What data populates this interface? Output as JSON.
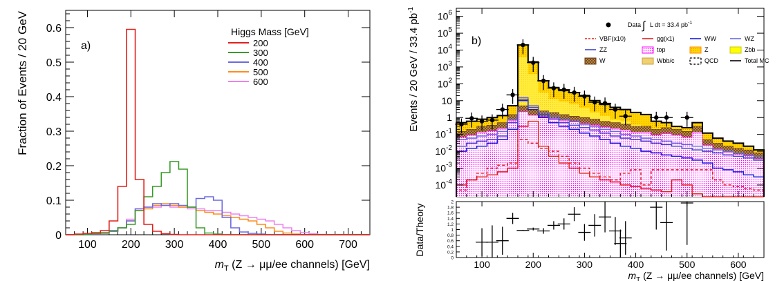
{
  "chart_data": [
    {
      "type": "line",
      "panel_label": "a)",
      "xlabel_var": "m",
      "xlabel_sub": "T",
      "xlabel_rest": " (Z → μμ/ee channels) [GeV]",
      "ylabel": "Fraction of Events / 20 GeV",
      "xlim": [
        50,
        750
      ],
      "ylim": [
        0,
        0.65
      ],
      "xticks": [
        "100",
        "200",
        "300",
        "400",
        "500",
        "600",
        "700"
      ],
      "xtick_values": [
        100,
        200,
        300,
        400,
        500,
        600,
        700
      ],
      "yticks": [
        "0",
        "0.1",
        "0.2",
        "0.3",
        "0.4",
        "0.5",
        "0.6"
      ],
      "ytick_values": [
        0,
        0.1,
        0.2,
        0.3,
        0.4,
        0.5,
        0.6
      ],
      "legend_title": "Higgs Mass [GeV]",
      "legend_position": "top-right",
      "bin_edges": [
        50,
        70,
        90,
        110,
        130,
        150,
        170,
        190,
        210,
        230,
        250,
        270,
        290,
        310,
        330,
        350,
        370,
        390,
        410,
        430,
        450,
        470,
        490,
        510,
        530,
        550,
        570,
        590,
        610,
        630,
        650,
        670,
        690,
        710,
        730,
        750
      ],
      "series": [
        {
          "name": "200",
          "color": "#e0201c",
          "values": [
            0,
            0.002,
            0.004,
            0.006,
            0.012,
            0.04,
            0.14,
            0.595,
            0.16,
            0.03,
            0.01,
            0.003,
            0.001,
            0,
            0,
            0,
            0,
            0,
            0,
            0,
            0,
            0,
            0,
            0,
            0,
            0,
            0,
            0,
            0,
            0,
            0,
            0,
            0,
            0,
            0
          ]
        },
        {
          "name": "300",
          "color": "#3a9a2a",
          "values": [
            0,
            0,
            0.001,
            0.003,
            0.006,
            0.012,
            0.02,
            0.03,
            0.07,
            0.11,
            0.14,
            0.18,
            0.212,
            0.19,
            0.08,
            0.02,
            0.005,
            0.002,
            0,
            0,
            0,
            0,
            0,
            0,
            0,
            0,
            0,
            0,
            0,
            0,
            0,
            0,
            0,
            0,
            0
          ]
        },
        {
          "name": "400",
          "color": "#6a6adf",
          "values": [
            0,
            0,
            0,
            0.002,
            0.005,
            0.01,
            0.02,
            0.04,
            0.075,
            0.08,
            0.09,
            0.085,
            0.09,
            0.085,
            0.08,
            0.105,
            0.11,
            0.1,
            0.05,
            0.02,
            0.008,
            0.004,
            0.002,
            0,
            0,
            0,
            0,
            0,
            0,
            0,
            0,
            0,
            0,
            0,
            0
          ]
        },
        {
          "name": "500",
          "color": "#ff8c1a",
          "values": [
            0,
            0,
            0,
            0.002,
            0.004,
            0.01,
            0.02,
            0.04,
            0.07,
            0.075,
            0.085,
            0.09,
            0.085,
            0.08,
            0.08,
            0.07,
            0.065,
            0.06,
            0.055,
            0.05,
            0.045,
            0.04,
            0.03,
            0.02,
            0.01,
            0.005,
            0.002,
            0,
            0,
            0,
            0,
            0,
            0,
            0,
            0
          ]
        },
        {
          "name": "600",
          "color": "#ee82ee",
          "values": [
            0,
            0,
            0,
            0.002,
            0.004,
            0.01,
            0.02,
            0.045,
            0.075,
            0.08,
            0.08,
            0.085,
            0.08,
            0.08,
            0.075,
            0.075,
            0.07,
            0.07,
            0.065,
            0.06,
            0.055,
            0.05,
            0.045,
            0.04,
            0.03,
            0.02,
            0.012,
            0.006,
            0.003,
            0.001,
            0,
            0,
            0,
            0,
            0
          ]
        }
      ]
    },
    {
      "type": "area",
      "panel_label": "b)",
      "xlabel_var": "m",
      "xlabel_sub": "T",
      "xlabel_rest": " (Z → μμ/ee channels) [GeV]",
      "ylabel": "Events / 20 GeV / 33.4 pb",
      "ylabel_sup": "-1",
      "yscale": "log",
      "xlim": [
        50,
        650
      ],
      "ylim": [
        2e-05,
        3000000
      ],
      "xticks": [
        "100",
        "200",
        "300",
        "400",
        "500",
        "600"
      ],
      "xtick_values": [
        100,
        200,
        300,
        400,
        500,
        600
      ],
      "ytick_values": [
        0.0001,
        0.001,
        0.01,
        0.1,
        1,
        10,
        100,
        1000,
        10000,
        100000,
        1000000
      ],
      "ytick_labels": [
        {
          "base": "10",
          "exp": "-4"
        },
        {
          "base": "10",
          "exp": "-3"
        },
        {
          "base": "10",
          "exp": "-2"
        },
        {
          "base": "10",
          "exp": "-1"
        },
        {
          "base": "1",
          "exp": ""
        },
        {
          "base": "10",
          "exp": ""
        },
        {
          "base": "10",
          "exp": "2"
        },
        {
          "base": "10",
          "exp": "3"
        },
        {
          "base": "10",
          "exp": "4"
        },
        {
          "base": "10",
          "exp": "5"
        },
        {
          "base": "10",
          "exp": "6"
        }
      ],
      "data_label_prefix": "Data",
      "data_label_int": "L dt = 33.4 pb",
      "data_label_sup": "-1",
      "legend_position": "top-right",
      "bin_edges": [
        50,
        70,
        90,
        110,
        130,
        150,
        170,
        190,
        210,
        230,
        250,
        270,
        290,
        310,
        330,
        350,
        370,
        390,
        410,
        430,
        450,
        470,
        490,
        510,
        530,
        550,
        570,
        590,
        610,
        630,
        650
      ],
      "total_mc": [
        0.5,
        0.6,
        0.8,
        1.0,
        1.3,
        5,
        20000,
        2000,
        150,
        60,
        40,
        30,
        20,
        10,
        6,
        4,
        3,
        2,
        1.5,
        0.6,
        0.5,
        0.3,
        0.25,
        0.5,
        0.12,
        0.06,
        0.04,
        0.03,
        0.02,
        0.012
      ],
      "mc_band": [
        {
          "name": "Z",
          "color": "#ffd700",
          "values": [
            0.2,
            0.3,
            0.4,
            0.5,
            0.7,
            3,
            15000,
            1500,
            120,
            50,
            35,
            25,
            15,
            8,
            5,
            3,
            2.5,
            1.5,
            1.2,
            0.5,
            0.4,
            0.25,
            0.2,
            0.45,
            0.1,
            0.05,
            0.03,
            0.025,
            0.015,
            0.01
          ]
        },
        {
          "name": "W",
          "color": "#8b5a2b",
          "values": [
            0.15,
            0.2,
            0.3,
            0.35,
            0.5,
            1.5,
            5,
            3,
            2.5,
            2,
            1.5,
            1.2,
            1,
            0.8,
            0.6,
            0.5,
            0.4,
            0.3,
            0.3,
            0.2,
            0.25,
            0.2,
            0.15,
            0.3,
            0.05,
            0.03,
            0.02,
            0.015,
            0.012,
            0.008
          ]
        }
      ],
      "series": [
        {
          "name": "VBF(x10)",
          "color": "#e0201c",
          "dashed": true,
          "values": [
            5e-05,
            0.0002,
            0.0005,
            0.001,
            0.0015,
            0.002,
            0.05,
            0.03,
            0.015,
            0.01,
            0.005,
            0.002,
            0.001,
            0.0005,
            0.0003,
            0.0002,
            0.0005,
            0.0008,
            0.0001,
            0.0008,
            0.0008,
            0.0008,
            0.0008,
            0.0008,
            0.0008,
            0.0002,
            0.0001,
            8e-05,
            6e-05,
            5e-05
          ]
        },
        {
          "name": "gg(x1)",
          "color": "#e0201c",
          "dashed": false,
          "values": [
            0.0001,
            0.0002,
            0.0003,
            0.0004,
            0.0006,
            0.001,
            0.3,
            0.6,
            0.02,
            0.005,
            0.002,
            0.001,
            0.0005,
            0.0003,
            0.0002,
            0.00015,
            0.0001,
            8e-05,
            6e-05,
            5e-05,
            4e-05,
            0.0002,
            0.0001,
            3e-05,
            2e-05,
            2e-05,
            2e-05,
            2e-05,
            2e-05,
            2e-05
          ]
        },
        {
          "name": "WW",
          "color": "#1a1adf",
          "dashed": false,
          "values": [
            0.01,
            0.015,
            0.02,
            0.03,
            0.05,
            0.2,
            10,
            3,
            1,
            0.5,
            0.3,
            0.2,
            0.12,
            0.08,
            0.05,
            0.03,
            0.02,
            0.015,
            0.01,
            0.008,
            0.006,
            0.005,
            0.004,
            0.003,
            0.002,
            0.001,
            0.0008,
            0.0006,
            0.0004,
            0.0003
          ]
        },
        {
          "name": "WZ",
          "color": "#6a6adf",
          "dashed": false,
          "values": [
            0.05,
            0.06,
            0.08,
            0.1,
            0.15,
            0.8,
            15,
            5,
            2,
            1.2,
            0.8,
            0.6,
            0.4,
            0.3,
            0.2,
            0.15,
            0.1,
            0.08,
            0.06,
            0.05,
            0.04,
            0.03,
            0.025,
            0.02,
            0.015,
            0.012,
            0.01,
            0.008,
            0.006,
            0.005
          ]
        },
        {
          "name": "ZZ",
          "color": "#4444cc",
          "dashed": false,
          "values": [
            0.02,
            0.03,
            0.04,
            0.05,
            0.08,
            0.5,
            12,
            4,
            1.5,
            0.8,
            0.5,
            0.35,
            0.25,
            0.18,
            0.12,
            0.08,
            0.06,
            0.05,
            0.04,
            0.03,
            0.025,
            0.02,
            0.015,
            0.012,
            0.01,
            0.008,
            0.006,
            0.005,
            0.004,
            0.003
          ]
        },
        {
          "name": "Total MC",
          "color": "#000000",
          "dashed": false,
          "values": [
            0.5,
            0.6,
            0.8,
            1.0,
            1.3,
            5,
            20000,
            2000,
            150,
            60,
            40,
            30,
            20,
            10,
            6,
            4,
            3,
            2,
            1.5,
            0.6,
            0.5,
            0.3,
            0.25,
            0.5,
            0.12,
            0.06,
            0.04,
            0.03,
            0.02,
            0.012
          ]
        }
      ],
      "data_points": [
        {
          "x": 60,
          "y": 0.4
        },
        {
          "x": 80,
          "y": 0.9
        },
        {
          "x": 100,
          "y": 0.6
        },
        {
          "x": 120,
          "y": 0.7
        },
        {
          "x": 140,
          "y": 3
        },
        {
          "x": 160,
          "y": 22
        },
        {
          "x": 180,
          "y": 20000
        },
        {
          "x": 200,
          "y": 1800
        },
        {
          "x": 220,
          "y": 150
        },
        {
          "x": 240,
          "y": 55
        },
        {
          "x": 260,
          "y": 45
        },
        {
          "x": 280,
          "y": 30
        },
        {
          "x": 300,
          "y": 18
        },
        {
          "x": 320,
          "y": 8
        },
        {
          "x": 340,
          "y": 7
        },
        {
          "x": 360,
          "y": 3
        },
        {
          "x": 380,
          "y": 1.2
        },
        {
          "x": 440,
          "y": 1
        },
        {
          "x": 460,
          "y": 1
        },
        {
          "x": 500,
          "y": 1
        }
      ],
      "legend": {
        "data": "Data",
        "row1": [
          "VBF(x10)",
          "gg(x1)",
          "WW",
          "WZ"
        ],
        "row2": [
          "ZZ",
          "top",
          "Z",
          "Zbb"
        ],
        "row3": [
          "W",
          "Wbb/c",
          "QCD",
          "Total MC"
        ]
      },
      "legend_colors": {
        "VBF(x10)": "#e0201c",
        "gg(x1)": "#e0201c",
        "WW": "#1a1adf",
        "WZ": "#6a6adf",
        "ZZ": "#4444cc",
        "top": "#ff00ff",
        "Z": "#ffd700",
        "Zbb": "#ffff00",
        "W": "#8b5a2b",
        "Wbb/c": "#c8a040",
        "QCD": "#000000",
        "Total MC": "#000000"
      },
      "ratio": {
        "ylabel": "Data/Theory",
        "ylim": [
          0,
          2
        ],
        "yticks": [
          "0",
          "0.2",
          "0.4",
          "0.6",
          "0.8",
          "1",
          "1.2",
          "1.4",
          "1.6",
          "1.8",
          "2"
        ],
        "ytick_values": [
          0,
          0.2,
          0.4,
          0.6,
          0.8,
          1,
          1.2,
          1.4,
          1.6,
          1.8,
          2
        ],
        "points": [
          {
            "x": 100,
            "y": 0.55,
            "err": 0.5
          },
          {
            "x": 120,
            "y": 0.55,
            "err": 0.6
          },
          {
            "x": 140,
            "y": 0.6,
            "err": 0.5
          },
          {
            "x": 160,
            "y": 1.4,
            "err": 0.2
          },
          {
            "x": 180,
            "y": 0.97,
            "err": 0.02
          },
          {
            "x": 200,
            "y": 1.02,
            "err": 0.05
          },
          {
            "x": 220,
            "y": 0.95,
            "err": 0.1
          },
          {
            "x": 240,
            "y": 1.15,
            "err": 0.15
          },
          {
            "x": 260,
            "y": 1.2,
            "err": 0.2
          },
          {
            "x": 280,
            "y": 1.55,
            "err": 0.25
          },
          {
            "x": 300,
            "y": 0.9,
            "err": 0.3
          },
          {
            "x": 320,
            "y": 1.15,
            "err": 0.4
          },
          {
            "x": 340,
            "y": 1.45,
            "err": 0.55
          },
          {
            "x": 360,
            "y": 0.95,
            "err": 0.5
          },
          {
            "x": 370,
            "y": 0.5,
            "err": 0.5
          },
          {
            "x": 380,
            "y": 0.7,
            "err": 0.6
          },
          {
            "x": 440,
            "y": 1.8,
            "err": 0.8
          },
          {
            "x": 460,
            "y": 1.25,
            "err": 1.0
          },
          {
            "x": 500,
            "y": 1.95,
            "err": 1.5
          }
        ]
      }
    }
  ]
}
